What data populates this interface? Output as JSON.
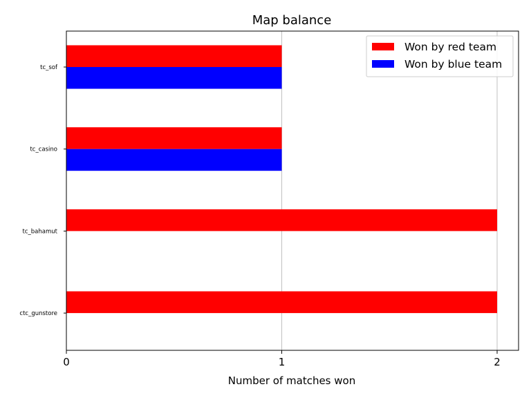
{
  "chart_data": {
    "type": "bar",
    "orientation": "horizontal",
    "title": "Map balance",
    "xlabel": "Number of matches won",
    "ylabel": "",
    "categories": [
      "tc_sof",
      "tc_casino",
      "tc_bahamut",
      "ctc_gunstore"
    ],
    "series": [
      {
        "name": "Won by red team",
        "values": [
          1,
          1,
          2,
          2
        ],
        "color": "#ff0000"
      },
      {
        "name": "Won by blue team",
        "values": [
          1,
          1,
          0,
          0
        ],
        "color": "#0000ff"
      }
    ],
    "xlim": [
      0,
      2.1
    ],
    "xticks": [
      "0",
      "1",
      "2"
    ],
    "grid": "x",
    "legend": "top-right"
  }
}
